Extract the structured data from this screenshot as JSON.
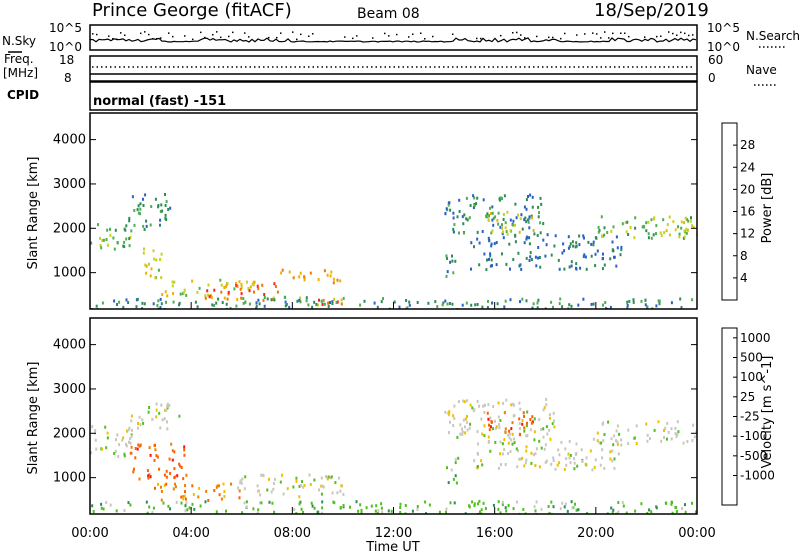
{
  "header": {
    "station": "Prince George (fitACF)",
    "beam": "Beam 08",
    "date": "18/Sep/2019"
  },
  "nsky_panel": {
    "left_label": "N.Sky",
    "right_label": "N.Search",
    "left_ticks": [
      "10^5",
      "10^0"
    ],
    "right_ticks": [
      "10^5",
      "10^0"
    ]
  },
  "freq_panel": {
    "left_label_top": "Freq.",
    "left_label_bottom": "[MHz]",
    "right_label": "Nave",
    "left_ticks": [
      "18",
      "8"
    ],
    "right_ticks": [
      "60",
      "0"
    ]
  },
  "cpid": {
    "label": "CPID",
    "value": "normal (fast) -151"
  },
  "chart_data": [
    {
      "type": "heatmap",
      "title": "",
      "ylabel": "Slant Range [km]",
      "xlabel": "",
      "ylim": [
        180,
        4600
      ],
      "yticks": [
        1000,
        2000,
        3000,
        4000
      ],
      "xticks": [
        "00:00",
        "04:00",
        "08:00",
        "12:00",
        "16:00",
        "20:00",
        "00:00"
      ],
      "colorbar": {
        "label": "Power [dB]",
        "range": [
          0,
          32
        ],
        "ticks": [
          "4",
          "8",
          "12",
          "16",
          "20",
          "24",
          "28"
        ],
        "colors": [
          "#1010ff",
          "#2a60c8",
          "#2e8b57",
          "#4caf50",
          "#c8d020",
          "#f0b000",
          "#f07800",
          "#ff2020"
        ]
      },
      "regions": [
        {
          "t": [
            0.0,
            1.6
          ],
          "r": [
            1500,
            2200
          ],
          "level": 14
        },
        {
          "t": [
            1.5,
            3.3
          ],
          "r": [
            2000,
            2800
          ],
          "level": 10
        },
        {
          "t": [
            1.8,
            2.8
          ],
          "r": [
            900,
            1600
          ],
          "level": 18
        },
        {
          "t": [
            2.8,
            6.5
          ],
          "r": [
            500,
            900
          ],
          "level": 18
        },
        {
          "t": [
            4.5,
            7.5
          ],
          "r": [
            400,
            800
          ],
          "level": 27
        },
        {
          "t": [
            7.5,
            10.0
          ],
          "r": [
            800,
            1100
          ],
          "level": 24
        },
        {
          "t": [
            6.0,
            10.0
          ],
          "r": [
            300,
            500
          ],
          "level": 14
        },
        {
          "t": [
            8.5,
            10.5
          ],
          "r": [
            300,
            420
          ],
          "level": 29
        },
        {
          "t": [
            0.0,
            24.0
          ],
          "r": [
            200,
            450
          ],
          "level": 10
        },
        {
          "t": [
            14.0,
            18.0
          ],
          "r": [
            1900,
            2800
          ],
          "level": 10
        },
        {
          "t": [
            15.5,
            17.5
          ],
          "r": [
            1900,
            2400
          ],
          "level": 18
        },
        {
          "t": [
            15.0,
            21.0
          ],
          "r": [
            1100,
            1900
          ],
          "level": 8
        },
        {
          "t": [
            20.0,
            24.0
          ],
          "r": [
            1800,
            2300
          ],
          "level": 14
        },
        {
          "t": [
            22.5,
            24.0
          ],
          "r": [
            1800,
            2200
          ],
          "level": 20
        },
        {
          "t": [
            14.0,
            14.6
          ],
          "r": [
            900,
            1500
          ],
          "level": 10
        }
      ]
    },
    {
      "type": "heatmap",
      "title": "",
      "ylabel": "Slant Range [km]",
      "xlabel": "Time UT",
      "ylim": [
        180,
        4600
      ],
      "yticks": [
        1000,
        2000,
        3000,
        4000
      ],
      "xticks": [
        "00:00",
        "04:00",
        "08:00",
        "12:00",
        "16:00",
        "20:00",
        "00:00"
      ],
      "colorbar": {
        "label": "Velocity [m s^-1]",
        "ticks": [
          "1000",
          "500",
          "100",
          "25",
          "-25",
          "-100",
          "-500",
          "-1000"
        ],
        "colors": [
          "#1010ff",
          "#2a60c8",
          "#2e8b57",
          "#50c020",
          "#c8c8c0",
          "#f0c000",
          "#f08000",
          "#ff6000",
          "#ff1010"
        ]
      },
      "regions": [
        {
          "t": [
            0.0,
            1.8
          ],
          "r": [
            1500,
            2200
          ],
          "level": 4
        },
        {
          "t": [
            1.5,
            3.5
          ],
          "r": [
            2100,
            2700
          ],
          "level": 4
        },
        {
          "t": [
            1.5,
            3.8
          ],
          "r": [
            1000,
            1800
          ],
          "level": 7
        },
        {
          "t": [
            2.5,
            6.0
          ],
          "r": [
            500,
            900
          ],
          "level": 6
        },
        {
          "t": [
            5.5,
            10.0
          ],
          "r": [
            600,
            1100
          ],
          "level": 4
        },
        {
          "t": [
            0.0,
            24.0
          ],
          "r": [
            200,
            500
          ],
          "level": 3
        },
        {
          "t": [
            14.0,
            18.5
          ],
          "r": [
            1900,
            2800
          ],
          "level": 4
        },
        {
          "t": [
            15.5,
            17.5
          ],
          "r": [
            2000,
            2500
          ],
          "level": 7
        },
        {
          "t": [
            15.0,
            21.0
          ],
          "r": [
            1200,
            1900
          ],
          "level": 4
        },
        {
          "t": [
            20.0,
            24.0
          ],
          "r": [
            1800,
            2300
          ],
          "level": 4
        },
        {
          "t": [
            14.0,
            14.6
          ],
          "r": [
            900,
            1500
          ],
          "level": 3
        }
      ]
    }
  ]
}
